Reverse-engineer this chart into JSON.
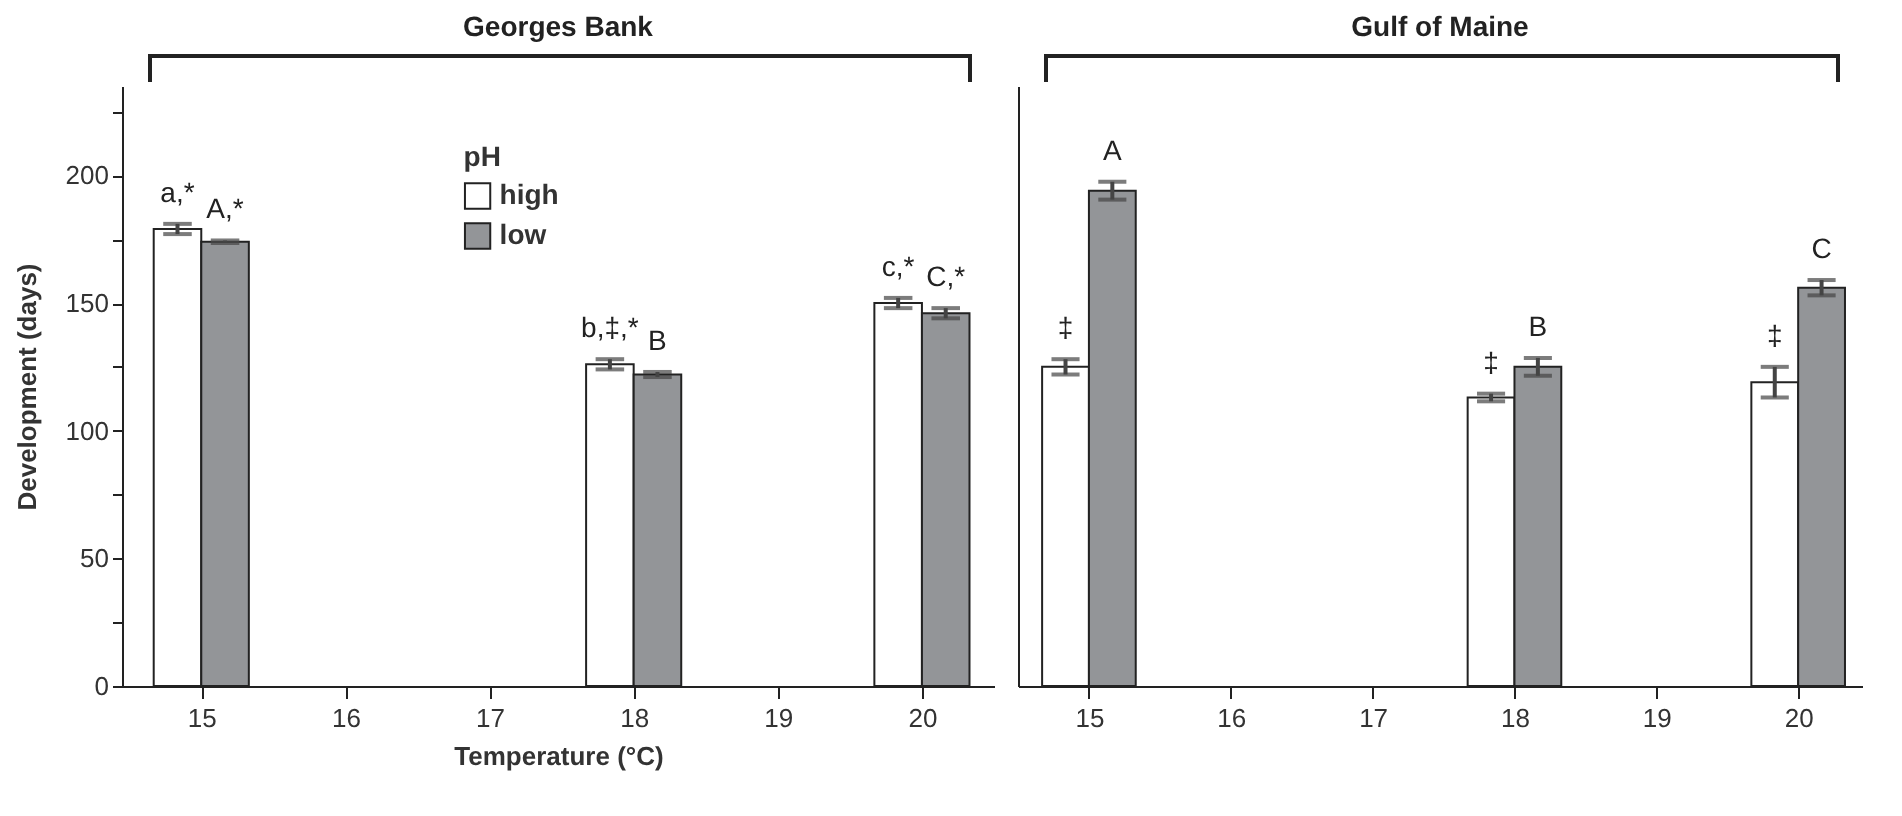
{
  "chart_data": [
    {
      "type": "bar",
      "title": "Georges Bank",
      "xlabel": "Temperature (°C)",
      "ylabel": "Development (days)",
      "legend_title": "pH",
      "legend": "top left",
      "x": [
        15,
        18,
        20
      ],
      "series": [
        {
          "name": "high",
          "color": "#ffffff",
          "values": [
            179,
            126,
            150
          ],
          "errors": [
            2,
            2,
            2
          ]
        },
        {
          "name": "low",
          "color": "#939598",
          "values": [
            174,
            122,
            146
          ],
          "errors": [
            0.5,
            1,
            2
          ]
        }
      ],
      "xlim": [
        14.45,
        20.5
      ],
      "xticks": [
        15,
        16,
        17,
        18,
        19,
        20
      ],
      "ylim": [
        0,
        235
      ],
      "yticks": [
        0,
        {
          "value": 25,
          "label": null
        },
        50,
        {
          "value": 75,
          "label": null
        },
        100,
        {
          "value": 125,
          "label": null
        },
        150,
        {
          "value": 175,
          "label": null
        },
        200,
        {
          "value": 225,
          "label": null
        }
      ],
      "grid": false,
      "annotations": [
        {
          "text": "a,*",
          "x": 15,
          "y": 179
        },
        {
          "text": "A,*",
          "x": 15,
          "y": 174
        },
        {
          "text": "b,‡,*",
          "x": 18,
          "y": 126
        },
        {
          "text": "B",
          "x": 18,
          "y": 122
        },
        {
          "text": "c,*",
          "x": 20,
          "y": 150
        },
        {
          "text": "C,*",
          "x": 20,
          "y": 146
        }
      ]
    },
    {
      "type": "bar",
      "title": "Gulf of Maine",
      "tick_labels": "x",
      "x": [
        15,
        18,
        20
      ],
      "series": [
        {
          "name": "high",
          "color": "#ffffff",
          "values": [
            125,
            113,
            119
          ],
          "errors": [
            3,
            1.5,
            6
          ]
        },
        {
          "name": "low",
          "color": "#939598",
          "values": [
            194,
            125,
            156
          ],
          "errors": [
            3.5,
            3.5,
            3
          ]
        }
      ],
      "xlim": [
        14.5,
        20.45
      ],
      "xticks": [
        15,
        16,
        17,
        18,
        19,
        20
      ],
      "ylim": [
        0,
        235
      ],
      "grid": false,
      "annotations": [
        {
          "text": "‡",
          "x": 15,
          "y": 125
        },
        {
          "text": "A",
          "x": 15,
          "y": 194
        },
        {
          "text": "‡",
          "x": 18,
          "y": 113
        },
        {
          "text": "B",
          "x": 18,
          "y": 125
        },
        {
          "text": "‡",
          "x": 20,
          "y": 119
        },
        {
          "text": "C",
          "x": 20,
          "y": 156
        }
      ]
    }
  ]
}
